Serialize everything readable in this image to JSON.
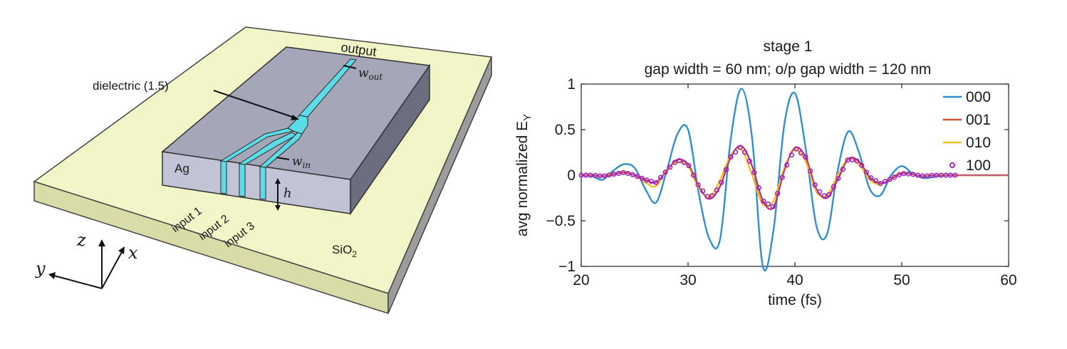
{
  "diagram": {
    "labels": {
      "output": "output",
      "dielectric": "dielectric (1.5)",
      "ag": "Ag",
      "input1": "input 1",
      "input2": "input 2",
      "input3": "input 3",
      "sio2_main": "SiO",
      "sio2_sub": "2",
      "w_out_main": "w",
      "w_out_sub": "out",
      "w_in_main": "w",
      "w_in_sub": "in",
      "h": "h",
      "axis_z": "z",
      "axis_y": "y",
      "axis_x": "x"
    },
    "colors": {
      "substrate_top": "#f2f5c8",
      "substrate_side": "#d9dca6",
      "substrate_right": "#9c9c9c",
      "metal_top": "#a5a6b8",
      "metal_side": "#c3c3d6",
      "metal_right": "#6d6d80",
      "waveguide": "#5cdce8"
    }
  },
  "chart_data": {
    "type": "line",
    "title": "stage 1",
    "subtitle": "gap width = 60 nm; o/p gap width = 120 nm",
    "xlabel": "time (fs)",
    "ylabel_main": "avg normalized E",
    "ylabel_sub": "Y",
    "xlim": [
      20,
      60
    ],
    "ylim": [
      -1,
      1
    ],
    "xticks": [
      20,
      30,
      40,
      50,
      60
    ],
    "yticks": [
      -1,
      -0.5,
      0,
      0.5,
      1
    ],
    "ytick_labels": [
      "−1",
      "−0.5",
      "0",
      "0.5",
      "1"
    ],
    "grid": false,
    "legend_position": "top-right",
    "series": [
      {
        "name": "000",
        "color": "#2f8fd0",
        "style": "line",
        "x": [
          20,
          21,
          22,
          23,
          24,
          25,
          26,
          27,
          28,
          29,
          30,
          31,
          32,
          33,
          34,
          35,
          36,
          37,
          38,
          39,
          40,
          41,
          42,
          43,
          44,
          45,
          46,
          47,
          48,
          49,
          50,
          51,
          52,
          53,
          54,
          55,
          56,
          57,
          58,
          59,
          60
        ],
        "y": [
          0,
          -0.01,
          -0.05,
          0.05,
          0.12,
          0.08,
          -0.15,
          -0.3,
          0.05,
          0.45,
          0.5,
          -0.2,
          -0.7,
          -0.7,
          0.4,
          0.95,
          0.4,
          -1.0,
          -0.6,
          0.55,
          0.9,
          0.3,
          -0.55,
          -0.65,
          0.05,
          0.48,
          0.25,
          -0.15,
          -0.22,
          0.0,
          0.1,
          0.02,
          -0.03,
          -0.02,
          0,
          0,
          0,
          0,
          0,
          0,
          0
        ]
      },
      {
        "name": "001",
        "color": "#d9532b",
        "style": "line",
        "x": [
          20,
          21,
          22,
          23,
          24,
          25,
          26,
          27,
          28,
          29,
          30,
          31,
          32,
          33,
          34,
          35,
          36,
          37,
          38,
          39,
          40,
          41,
          42,
          43,
          44,
          45,
          46,
          47,
          48,
          49,
          50,
          51,
          52,
          53,
          54,
          55,
          56,
          57,
          58,
          59,
          60
        ],
        "y": [
          0,
          0,
          -0.01,
          0.01,
          0.03,
          0.0,
          -0.05,
          -0.08,
          0.05,
          0.17,
          0.12,
          -0.12,
          -0.26,
          -0.12,
          0.2,
          0.32,
          0.1,
          -0.28,
          -0.35,
          0.05,
          0.3,
          0.2,
          -0.15,
          -0.25,
          -0.05,
          0.18,
          0.15,
          -0.02,
          -0.09,
          -0.04,
          0.02,
          0.01,
          -0.01,
          0,
          0,
          0,
          0,
          0,
          0,
          0,
          0
        ]
      },
      {
        "name": "010",
        "color": "#f0c020",
        "style": "line",
        "x": [
          20,
          21,
          22,
          23,
          24,
          25,
          26,
          27,
          28,
          29,
          30,
          31,
          32,
          33,
          34,
          35,
          36,
          37,
          38,
          39,
          40,
          41,
          42,
          43,
          44,
          45,
          46,
          47,
          48,
          49,
          50,
          51,
          52,
          53,
          54,
          55,
          56,
          57,
          58,
          59,
          60
        ],
        "y": [
          0,
          0,
          -0.01,
          0.02,
          0.04,
          0.0,
          -0.08,
          -0.12,
          0.06,
          0.14,
          0.1,
          -0.14,
          -0.24,
          -0.05,
          0.22,
          0.28,
          0.0,
          -0.32,
          -0.28,
          0.08,
          0.28,
          0.15,
          -0.18,
          -0.22,
          0.0,
          0.18,
          0.12,
          -0.05,
          -0.1,
          -0.03,
          0.03,
          0.01,
          -0.01,
          0,
          0,
          0,
          0,
          0,
          0,
          0,
          0
        ]
      },
      {
        "name": "100",
        "color": "#a020c0",
        "style": "markers",
        "x": [
          20,
          21,
          22,
          23,
          24,
          25,
          26,
          27,
          28,
          29,
          30,
          31,
          32,
          33,
          34,
          35,
          36,
          37,
          38,
          39,
          40,
          41,
          42,
          43,
          44,
          45,
          46,
          47,
          48,
          49,
          50,
          51,
          52,
          53,
          54,
          55,
          56,
          57,
          58,
          59,
          60
        ],
        "y": [
          0,
          0,
          -0.01,
          0.01,
          0.03,
          0.0,
          -0.05,
          -0.08,
          0.05,
          0.17,
          0.12,
          -0.12,
          -0.26,
          -0.12,
          0.2,
          0.32,
          0.1,
          -0.28,
          -0.35,
          0.05,
          0.3,
          0.2,
          -0.15,
          -0.25,
          -0.05,
          0.18,
          0.15,
          -0.02,
          -0.09,
          -0.04,
          0.02,
          0.01,
          -0.01,
          0,
          0,
          0,
          0,
          0,
          0,
          0,
          0
        ]
      }
    ]
  }
}
